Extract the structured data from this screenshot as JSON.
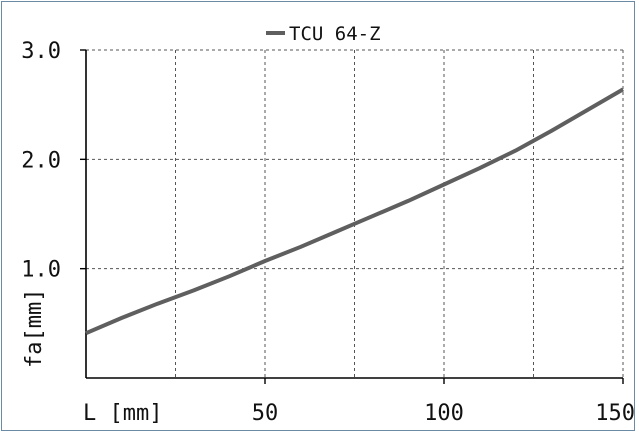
{
  "chart_data": {
    "type": "line",
    "xlabel": "L [mm]",
    "ylabel": "fa[mm]",
    "xlim": [
      0,
      150
    ],
    "ylim": [
      0,
      3.0
    ],
    "x_ticks": [
      {
        "value": 50,
        "label": "50"
      },
      {
        "value": 100,
        "label": "100"
      },
      {
        "value": 150,
        "label": "150"
      }
    ],
    "y_ticks": [
      {
        "value": 1.0,
        "label": "1.0"
      },
      {
        "value": 2.0,
        "label": "2.0"
      },
      {
        "value": 3.0,
        "label": "3.0"
      }
    ],
    "x_gridlines": [
      25,
      50,
      75,
      100,
      125,
      150
    ],
    "y_gridlines": [
      1.0,
      2.0,
      3.0
    ],
    "grid": "dashed",
    "legend_position": "top-center",
    "series": [
      {
        "name": "TCU 64-Z",
        "color": "#5f5f5f",
        "x": [
          0,
          10,
          20,
          25,
          30,
          40,
          50,
          60,
          70,
          75,
          80,
          90,
          100,
          110,
          115,
          120,
          125,
          130,
          140,
          150
        ],
        "y": [
          0.41,
          0.55,
          0.68,
          0.74,
          0.8,
          0.93,
          1.07,
          1.2,
          1.34,
          1.41,
          1.48,
          1.62,
          1.77,
          1.92,
          2.0,
          2.08,
          2.17,
          2.26,
          2.45,
          2.64
        ]
      }
    ]
  }
}
